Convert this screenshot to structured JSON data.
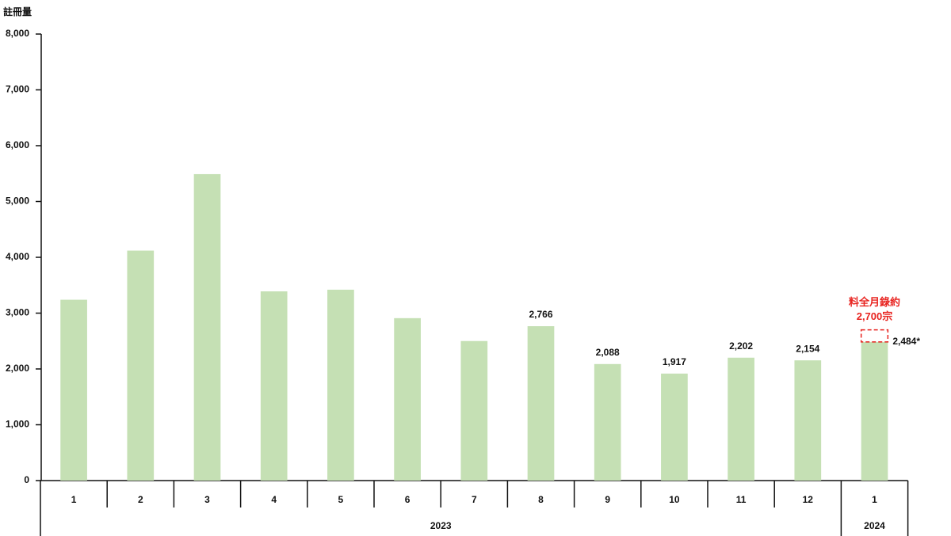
{
  "chart_data": {
    "type": "bar",
    "y_axis_label": "註冊量",
    "categories": [
      "1",
      "2",
      "3",
      "4",
      "5",
      "6",
      "7",
      "8",
      "9",
      "10",
      "11",
      "12",
      "1"
    ],
    "x_groups": [
      {
        "label": "2023",
        "count": 12
      },
      {
        "label": "2024",
        "count": 1
      }
    ],
    "values": [
      3240,
      4120,
      5490,
      3390,
      3420,
      2910,
      2500,
      2766,
      2088,
      1917,
      2202,
      2154,
      2484
    ],
    "value_labels": [
      null,
      null,
      null,
      null,
      null,
      null,
      null,
      "2,766",
      "2,088",
      "1,917",
      "2,202",
      "2,154",
      "2,484*"
    ],
    "color": "#c5e0b4",
    "projection": {
      "category": 12,
      "value": 2700,
      "lines": [
        "料全月錄約",
        "2,700宗"
      ],
      "color": "#e8231f"
    },
    "ylim": [
      0,
      8000
    ],
    "yticks": [
      0,
      {
        "value": 1000,
        "label": "1,000"
      },
      {
        "value": 2000,
        "label": "2,000"
      },
      {
        "value": 3000,
        "label": "3,000"
      },
      {
        "value": 4000,
        "label": "4,000"
      },
      {
        "value": 5000,
        "label": "5,000"
      },
      {
        "value": 6000,
        "label": "6,000"
      },
      {
        "value": 7000,
        "label": "7,000"
      },
      {
        "value": 8000,
        "label": "8,000"
      }
    ],
    "grid": false
  }
}
